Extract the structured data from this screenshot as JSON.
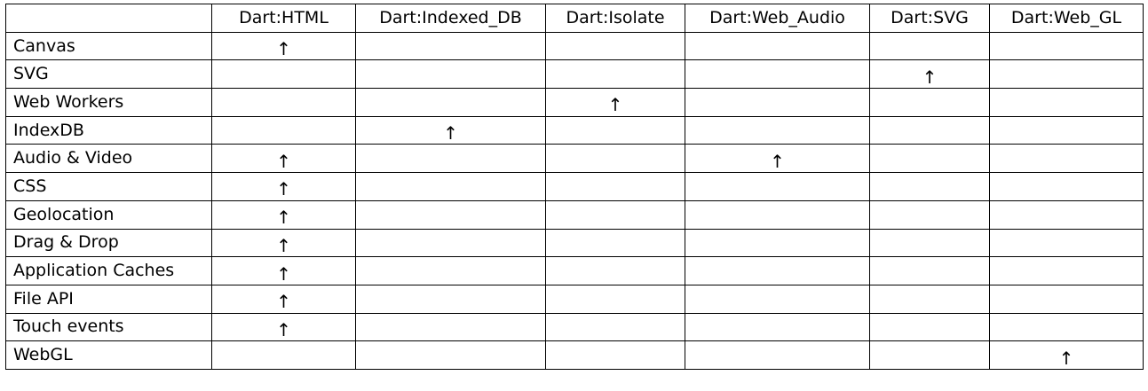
{
  "table": {
    "columns": [
      "",
      "Dart:HTML",
      "Dart:Indexed_DB",
      "Dart:Isolate",
      "Dart:Web_Audio",
      "Dart:SVG",
      "Dart:Web_GL"
    ],
    "mark_symbol": "↑",
    "rows": [
      {
        "label": "Canvas",
        "marks": [
          true,
          false,
          false,
          false,
          false,
          false
        ]
      },
      {
        "label": "SVG",
        "marks": [
          false,
          false,
          false,
          false,
          true,
          false
        ]
      },
      {
        "label": "Web Workers",
        "marks": [
          false,
          false,
          true,
          false,
          false,
          false
        ]
      },
      {
        "label": "IndexDB",
        "marks": [
          false,
          true,
          false,
          false,
          false,
          false
        ]
      },
      {
        "label": "Audio & Video",
        "marks": [
          true,
          false,
          false,
          true,
          false,
          false
        ]
      },
      {
        "label": "CSS",
        "marks": [
          true,
          false,
          false,
          false,
          false,
          false
        ]
      },
      {
        "label": "Geolocation",
        "marks": [
          true,
          false,
          false,
          false,
          false,
          false
        ]
      },
      {
        "label": "Drag & Drop",
        "marks": [
          true,
          false,
          false,
          false,
          false,
          false
        ]
      },
      {
        "label": "Application Caches",
        "marks": [
          true,
          false,
          false,
          false,
          false,
          false
        ]
      },
      {
        "label": "File API",
        "marks": [
          true,
          false,
          false,
          false,
          false,
          false
        ]
      },
      {
        "label": "Touch events",
        "marks": [
          true,
          false,
          false,
          false,
          false,
          false
        ]
      },
      {
        "label": "WebGL",
        "marks": [
          false,
          false,
          false,
          false,
          false,
          true
        ]
      }
    ]
  }
}
